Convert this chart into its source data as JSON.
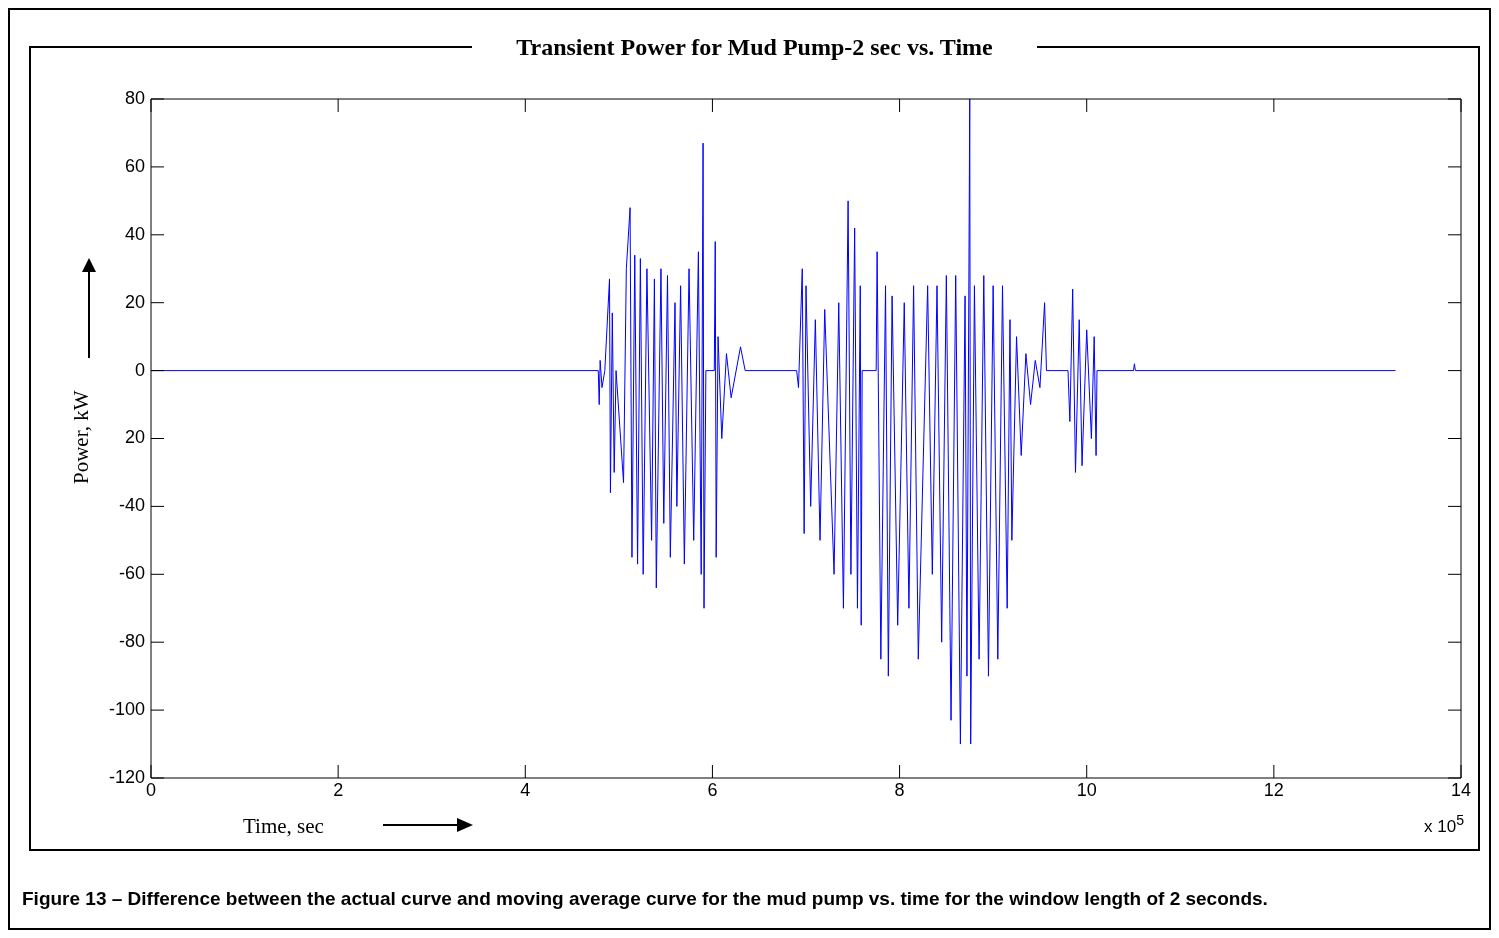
{
  "chart_data": {
    "type": "line",
    "title": "Transient Power for Mud Pump-2 sec vs. Time",
    "xlabel": "Time, sec",
    "ylabel": "Power, kW",
    "x": [
      0,
      4.78,
      4.79,
      4.8,
      4.82,
      4.85,
      4.9,
      4.91,
      4.93,
      4.95,
      4.97,
      5.05,
      5.08,
      5.12,
      5.14,
      5.17,
      5.2,
      5.23,
      5.26,
      5.3,
      5.35,
      5.38,
      5.4,
      5.45,
      5.48,
      5.52,
      5.55,
      5.6,
      5.62,
      5.66,
      5.7,
      5.75,
      5.8,
      5.85,
      5.88,
      5.9,
      5.91,
      5.93,
      6.02,
      6.03,
      6.04,
      6.06,
      6.1,
      6.15,
      6.2,
      6.3,
      6.35,
      6.9,
      6.92,
      6.96,
      6.98,
      7.0,
      7.05,
      7.1,
      7.15,
      7.2,
      7.3,
      7.35,
      7.4,
      7.45,
      7.48,
      7.52,
      7.55,
      7.58,
      7.59,
      7.6,
      7.75,
      7.76,
      7.8,
      7.85,
      7.88,
      7.92,
      7.98,
      8.05,
      8.1,
      8.15,
      8.2,
      8.3,
      8.35,
      8.4,
      8.45,
      8.5,
      8.55,
      8.6,
      8.65,
      8.7,
      8.72,
      8.75,
      8.76,
      8.8,
      8.85,
      8.9,
      8.95,
      9.0,
      9.05,
      9.1,
      9.15,
      9.18,
      9.2,
      9.25,
      9.3,
      9.35,
      9.4,
      9.45,
      9.5,
      9.55,
      9.57,
      9.8,
      9.82,
      9.85,
      9.88,
      9.92,
      9.95,
      10.0,
      10.05,
      10.08,
      10.1,
      10.11,
      10.5,
      10.51,
      10.52,
      13.3
    ],
    "series": [
      {
        "color": "#0000ff",
        "values": [
          0,
          0,
          -10,
          3,
          -5,
          0,
          27,
          -36,
          17,
          -30,
          0,
          -33,
          30,
          48,
          -55,
          34,
          -57,
          33,
          -60,
          30,
          -50,
          27,
          -64,
          30,
          -45,
          28,
          -55,
          20,
          -40,
          25,
          -57,
          30,
          -50,
          35,
          -60,
          67,
          -70,
          0,
          0,
          38,
          -55,
          10,
          -20,
          5,
          -8,
          7,
          0,
          0,
          -5,
          30,
          -48,
          25,
          -40,
          15,
          -50,
          18,
          -60,
          20,
          -70,
          50,
          -60,
          42,
          -70,
          25,
          -75,
          0,
          0,
          35,
          -85,
          25,
          -90,
          22,
          -75,
          20,
          -70,
          25,
          -85,
          25,
          -60,
          25,
          -80,
          28,
          -103,
          28,
          -110,
          22,
          -90,
          80,
          -110,
          25,
          -85,
          28,
          -90,
          25,
          -85,
          25,
          -70,
          15,
          -50,
          10,
          -25,
          5,
          -10,
          3,
          -5,
          20,
          0,
          0,
          -15,
          24,
          -30,
          15,
          -28,
          12,
          -20,
          10,
          -25,
          0,
          0,
          2,
          0,
          0
        ]
      }
    ],
    "xlim": [
      0,
      14
    ],
    "xticks": [
      0,
      2,
      4,
      6,
      8,
      10,
      12,
      14
    ],
    "ylim": [
      -120,
      80
    ],
    "yticks": [
      -120,
      -100,
      -80,
      -60,
      -40,
      {
        "value": -20,
        "label": "20"
      },
      0,
      20,
      40,
      60,
      80
    ],
    "grid": false,
    "legend": false,
    "marker": "none",
    "line_style": "solid",
    "annotations": [
      "x 10$^{5}$",
      "Figure 13 – Difference between the actual curve and moving average curve for the mud pump vs. time for the window length of 2 seconds."
    ]
  }
}
